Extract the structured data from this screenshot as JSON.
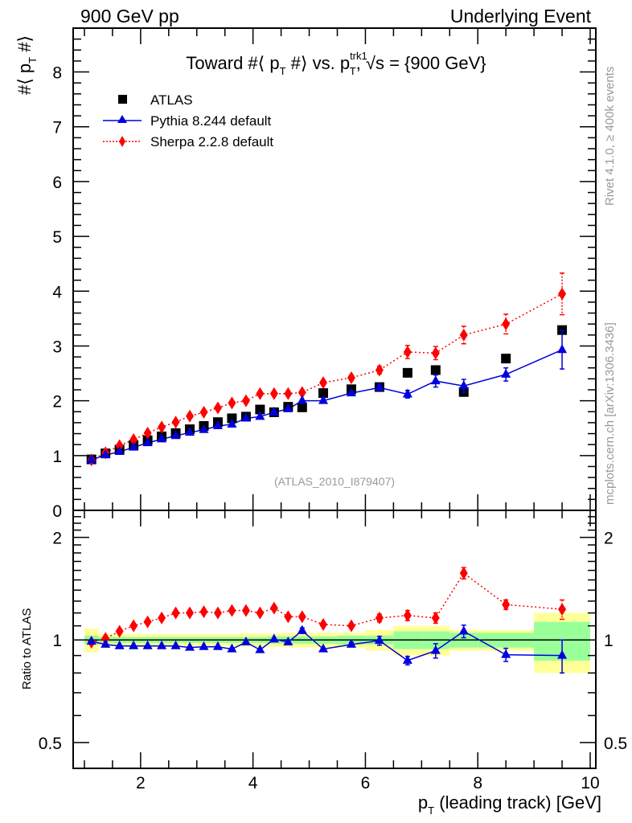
{
  "header": {
    "left": "900 GeV pp",
    "right": "Underlying Event"
  },
  "side_labels": {
    "rivet": "Rivet 4.1.0, ≥ 400k events",
    "mcplots": "mcplots.cern.ch [arXiv:1306.3436]"
  },
  "watermark": "(ATLAS_2010_I879407)",
  "chart_data": [
    {
      "type": "scatter",
      "panel": "main",
      "title": "Toward #⟨ p_T #⟩ vs. p_T^trk1, √s = {900 GeV}",
      "title_parts": {
        "a": "Toward #⟨ p",
        "sub1": "T",
        "b": " #⟩ vs. p",
        "sup": "trk1",
        "sub2": "T",
        "c": ", √s = {900 GeV}"
      },
      "ylabel": "#⟨ p_T #⟩",
      "ylabel_parts": {
        "a": "#⟨ p",
        "sub": "T",
        "b": " #⟩"
      },
      "xlabel": "",
      "xlim": [
        0.8,
        10.1
      ],
      "ylim": [
        0,
        8.8
      ],
      "yticks": [
        0,
        1,
        2,
        3,
        4,
        5,
        6,
        7,
        8
      ],
      "legend_position": "top-left",
      "x": [
        1.125,
        1.375,
        1.625,
        1.875,
        2.125,
        2.375,
        2.625,
        2.875,
        3.125,
        3.375,
        3.625,
        3.875,
        4.125,
        4.375,
        4.625,
        4.875,
        5.25,
        5.75,
        6.25,
        6.75,
        7.25,
        7.75,
        8.5,
        9.5
      ],
      "series": [
        {
          "name": "ATLAS",
          "style": "marker-square",
          "color": "#000000",
          "values": [
            0.93,
            1.04,
            1.11,
            1.19,
            1.28,
            1.35,
            1.41,
            1.48,
            1.54,
            1.61,
            1.68,
            1.71,
            1.84,
            1.79,
            1.89,
            1.88,
            2.14,
            2.21,
            2.25,
            2.51,
            2.56,
            2.16,
            2.77,
            3.29
          ]
        },
        {
          "name": "Pythia 8.244 default",
          "style": "solid-triangle",
          "color": "#0000dd",
          "values": [
            0.92,
            1.01,
            1.07,
            1.15,
            1.23,
            1.3,
            1.36,
            1.42,
            1.47,
            1.54,
            1.57,
            1.68,
            1.71,
            1.79,
            1.85,
            2.0,
            2.0,
            2.14,
            2.24,
            2.12,
            2.36,
            2.27,
            2.48,
            2.93
          ],
          "errors": [
            0,
            0,
            0,
            0,
            0,
            0,
            0,
            0,
            0,
            0,
            0,
            0,
            0,
            0,
            0,
            0,
            0.03,
            0.04,
            0.05,
            0.07,
            0.11,
            0.12,
            0.12,
            0.35
          ]
        },
        {
          "name": "Sherpa 2.2.8 default",
          "style": "dotted-diamond",
          "color": "#ff0000",
          "values": [
            0.92,
            1.05,
            1.18,
            1.29,
            1.41,
            1.52,
            1.61,
            1.72,
            1.79,
            1.87,
            1.96,
            2.0,
            2.13,
            2.13,
            2.13,
            2.15,
            2.33,
            2.42,
            2.56,
            2.89,
            2.87,
            3.2,
            3.4,
            3.95
          ],
          "errors": [
            0,
            0,
            0,
            0,
            0,
            0,
            0,
            0,
            0,
            0,
            0,
            0,
            0,
            0,
            0,
            0,
            0.04,
            0.05,
            0.07,
            0.12,
            0.12,
            0.16,
            0.18,
            0.38
          ]
        }
      ]
    },
    {
      "type": "scatter",
      "panel": "ratio",
      "ylabel": "Ratio to ATLAS",
      "xlabel": "p_T (leading track) [GeV]",
      "xlabel_parts": {
        "a": "p",
        "sub": "T",
        "b": " (leading track) [GeV]"
      },
      "yscale": "log",
      "ylim": [
        0.42,
        2.4
      ],
      "yticks": [
        0.5,
        1,
        2
      ],
      "ytick_labels": [
        "0.5",
        "1",
        "2"
      ],
      "xlim": [
        0.8,
        10.1
      ],
      "xticks": [
        2,
        4,
        6,
        8,
        10
      ],
      "xtick_labels": [
        "2",
        "4",
        "6",
        "8",
        "10"
      ],
      "bin_edges": [
        1.0,
        1.25,
        1.5,
        1.75,
        2.0,
        2.25,
        2.5,
        2.75,
        3.0,
        3.25,
        3.5,
        3.75,
        4.0,
        4.25,
        4.5,
        4.75,
        5.0,
        5.5,
        6.0,
        6.5,
        7.0,
        7.5,
        8.0,
        9.0,
        10.0
      ],
      "bands": {
        "stat_color": "#99ff99",
        "total_color": "#ffff99",
        "stat_rel": [
          0.03,
          0.02,
          0.02,
          0.02,
          0.02,
          0.02,
          0.02,
          0.02,
          0.02,
          0.02,
          0.02,
          0.02,
          0.02,
          0.025,
          0.025,
          0.025,
          0.025,
          0.03,
          0.03,
          0.06,
          0.06,
          0.05,
          0.05,
          0.13
        ],
        "total_rel": [
          0.08,
          0.04,
          0.04,
          0.04,
          0.04,
          0.04,
          0.04,
          0.04,
          0.04,
          0.04,
          0.04,
          0.045,
          0.045,
          0.045,
          0.05,
          0.05,
          0.05,
          0.05,
          0.07,
          0.1,
          0.1,
          0.07,
          0.07,
          0.2
        ]
      },
      "series": [
        {
          "name": "Pythia 8.244 default",
          "color": "#0000dd",
          "values": [
            0.99,
            0.97,
            0.96,
            0.96,
            0.96,
            0.96,
            0.96,
            0.95,
            0.955,
            0.955,
            0.94,
            0.985,
            0.935,
            1.005,
            0.985,
            1.065,
            0.94,
            0.97,
            0.995,
            0.87,
            0.93,
            1.06,
            0.905,
            0.9
          ],
          "errors": [
            0,
            0,
            0,
            0,
            0,
            0,
            0,
            0,
            0,
            0,
            0,
            0,
            0,
            0,
            0,
            0.02,
            0,
            0.015,
            0.03,
            0.025,
            0.045,
            0.045,
            0.04,
            0.1
          ]
        },
        {
          "name": "Sherpa 2.2.8 default",
          "color": "#ff0000",
          "values": [
            0.985,
            1.01,
            1.06,
            1.1,
            1.13,
            1.16,
            1.2,
            1.2,
            1.21,
            1.2,
            1.22,
            1.22,
            1.2,
            1.24,
            1.17,
            1.17,
            1.11,
            1.1,
            1.16,
            1.18,
            1.16,
            1.57,
            1.27,
            1.23
          ],
          "errors": [
            0,
            0,
            0,
            0,
            0,
            0,
            0,
            0,
            0,
            0,
            0,
            0,
            0,
            0,
            0,
            0,
            0,
            0,
            0.03,
            0.04,
            0.04,
            0.06,
            0.04,
            0.08
          ]
        }
      ]
    }
  ]
}
